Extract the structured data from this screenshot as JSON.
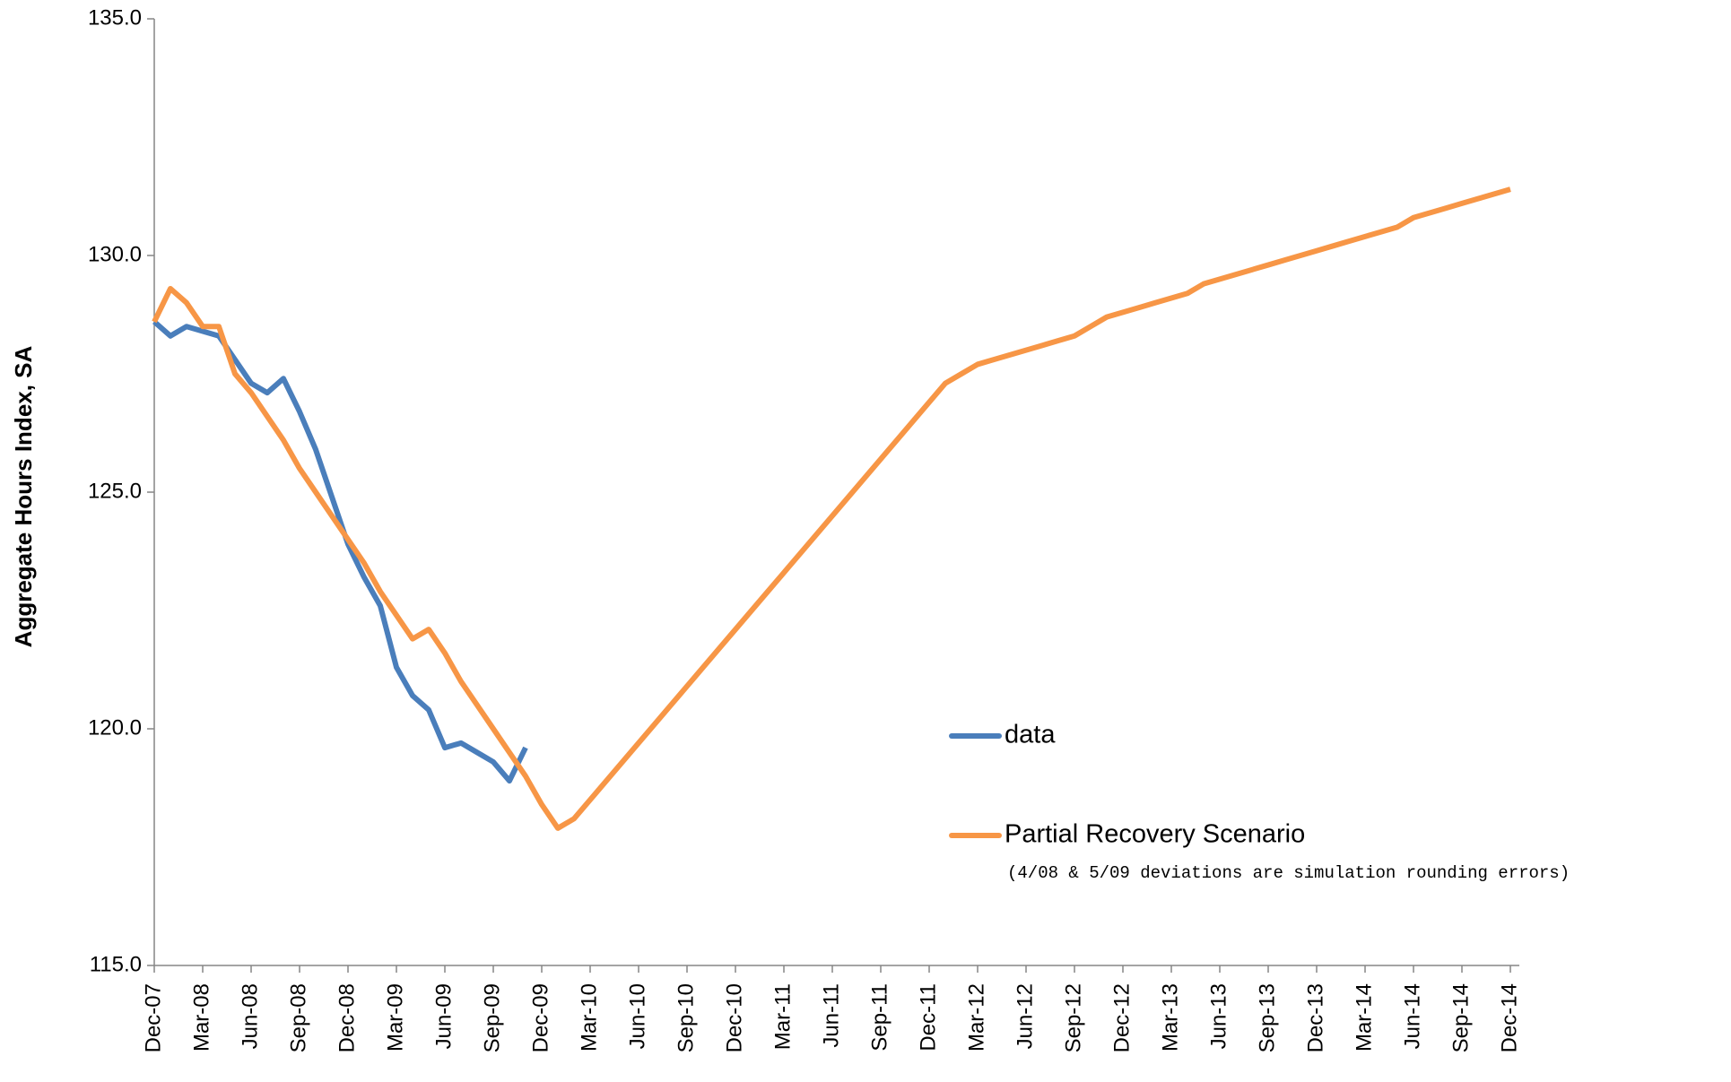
{
  "chart_data": {
    "type": "line",
    "y_label": "Aggregate Hours Index, SA",
    "note": "(4/08 & 5/09 deviations are simulation rounding errors)",
    "categories": [
      "Dec-07",
      null,
      null,
      "Mar-08",
      null,
      null,
      "Jun-08",
      null,
      null,
      "Sep-08",
      null,
      null,
      "Dec-08",
      null,
      null,
      "Mar-09",
      null,
      null,
      "Jun-09",
      null,
      null,
      "Sep-09",
      null,
      null,
      "Dec-09",
      null,
      null,
      "Mar-10",
      null,
      null,
      "Jun-10",
      null,
      null,
      "Sep-10",
      null,
      null,
      "Dec-10",
      null,
      null,
      "Mar-11",
      null,
      null,
      "Jun-11",
      null,
      null,
      "Sep-11",
      null,
      null,
      "Dec-11",
      null,
      null,
      "Mar-12",
      null,
      null,
      "Jun-12",
      null,
      null,
      "Sep-12",
      null,
      null,
      "Dec-12",
      null,
      null,
      "Mar-13",
      null,
      null,
      "Jun-13",
      null,
      null,
      "Sep-13",
      null,
      null,
      "Dec-13",
      null,
      null,
      "Mar-14",
      null,
      null,
      "Jun-14",
      null,
      null,
      "Sep-14",
      null,
      null,
      "Dec-14"
    ],
    "series": [
      {
        "name": "data",
        "color": "#4a7ebb",
        "values": [
          128.6,
          128.3,
          128.5,
          128.4,
          128.3,
          127.8,
          127.3,
          127.1,
          127.4,
          126.7,
          125.9,
          124.9,
          123.9,
          123.2,
          122.6,
          121.3,
          120.7,
          120.4,
          119.6,
          119.7,
          119.5,
          119.3,
          118.9,
          119.6,
          null,
          null,
          null,
          null,
          null,
          null,
          null,
          null,
          null,
          null,
          null,
          null,
          null,
          null,
          null,
          null,
          null,
          null,
          null,
          null,
          null,
          null,
          null,
          null,
          null,
          null,
          null,
          null,
          null,
          null,
          null,
          null,
          null,
          null,
          null,
          null,
          null,
          null,
          null,
          null,
          null,
          null,
          null,
          null,
          null,
          null,
          null,
          null,
          null,
          null,
          null,
          null,
          null,
          null,
          null,
          null,
          null,
          null,
          null,
          null,
          null
        ]
      },
      {
        "name": "Partial Recovery Scenario",
        "color": "#f79646",
        "values": [
          128.6,
          129.3,
          129.0,
          128.5,
          128.5,
          127.5,
          127.1,
          126.6,
          126.1,
          125.5,
          125.0,
          124.5,
          124.0,
          123.5,
          122.9,
          122.4,
          121.9,
          122.1,
          121.6,
          121.0,
          120.5,
          120.0,
          119.5,
          119.0,
          118.4,
          117.9,
          118.1,
          118.5,
          118.9,
          119.3,
          119.7,
          120.1,
          120.5,
          120.9,
          121.3,
          121.7,
          122.1,
          122.5,
          122.9,
          123.3,
          123.7,
          124.1,
          124.5,
          124.9,
          125.3,
          125.7,
          126.1,
          126.5,
          126.9,
          127.3,
          127.5,
          127.7,
          127.8,
          127.9,
          128.0,
          128.1,
          128.2,
          128.3,
          128.5,
          128.7,
          128.8,
          128.9,
          129.0,
          129.1,
          129.2,
          129.4,
          129.5,
          129.6,
          129.7,
          129.8,
          129.9,
          130.0,
          130.1,
          130.2,
          130.3,
          130.4,
          130.5,
          130.6,
          130.8,
          130.9,
          131.0,
          131.1,
          131.2,
          131.3,
          131.4
        ]
      }
    ],
    "ylim": [
      115,
      135
    ],
    "yticks": [
      {
        "value": 115,
        "label": "115.0"
      },
      {
        "value": 120,
        "label": "120.0"
      },
      {
        "value": 125,
        "label": "125.0"
      },
      {
        "value": 130,
        "label": "130.0"
      },
      {
        "value": 135,
        "label": "135.0"
      }
    ],
    "grid": false
  }
}
